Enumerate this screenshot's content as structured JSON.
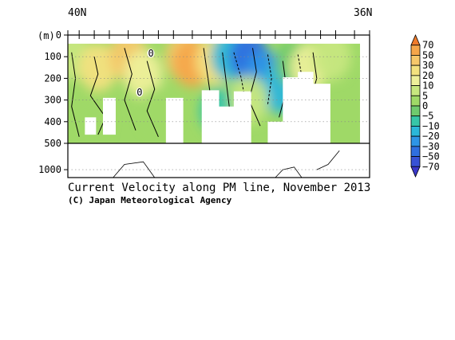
{
  "chart_data": {
    "type": "heatmap",
    "title": "Current Velocity along PM line, November 2013",
    "credit": "(C) Japan Meteorological Agency",
    "x_axis": {
      "left_label": "40N",
      "right_label": "36N",
      "range": [
        40,
        36
      ],
      "station_ticks": [
        40.0,
        39.85,
        39.65,
        39.45,
        39.2,
        39.0,
        38.8,
        38.6,
        38.35,
        38.1,
        37.9,
        37.7,
        37.45,
        37.25,
        37.05,
        36.85,
        36.65,
        36.45,
        36.2,
        36.0
      ]
    },
    "y_axis": {
      "unit_label": "(m)",
      "upper_ticks": [
        0,
        100,
        200,
        300,
        400,
        500
      ],
      "lower_ticks": [
        1000
      ],
      "upper_range": [
        0,
        500
      ],
      "lower_range": [
        500,
        1150
      ]
    },
    "colorbar": {
      "levels": [
        "70",
        "50",
        "30",
        "20",
        "10",
        "5",
        "0",
        "−5",
        "−10",
        "−20",
        "−30",
        "−50",
        "−70"
      ],
      "colors": [
        "#f07b2b",
        "#f5a64a",
        "#f6c86a",
        "#f3e27f",
        "#eef09a",
        "#c7e77f",
        "#9fd967",
        "#6fca6e",
        "#37c6a8",
        "#2bb7d9",
        "#2e95e6",
        "#2f6fe0",
        "#3752d6",
        "#3a38c9"
      ]
    },
    "contour_labels": [
      "0",
      "0"
    ],
    "profiles": [
      {
        "lat": 39.75,
        "bottom": 500
      },
      {
        "lat": 39.55,
        "bottom": 500
      },
      {
        "lat": 39.3,
        "bottom": 560
      },
      {
        "lat": 39.0,
        "bottom": 560
      },
      {
        "lat": 38.8,
        "bottom": 540
      },
      {
        "lat": 38.6,
        "bottom": 290
      },
      {
        "lat": 38.35,
        "bottom": 545
      },
      {
        "lat": 38.1,
        "bottom": 255
      },
      {
        "lat": 37.9,
        "bottom": 330
      },
      {
        "lat": 37.7,
        "bottom": 260
      },
      {
        "lat": 37.45,
        "bottom": 540
      },
      {
        "lat": 37.25,
        "bottom": 400
      },
      {
        "lat": 37.05,
        "bottom": 195
      },
      {
        "lat": 36.85,
        "bottom": 170
      },
      {
        "lat": 36.65,
        "bottom": 225
      },
      {
        "lat": 36.4,
        "bottom": 650
      }
    ],
    "value_field": [
      {
        "lat": 39.95,
        "depth": 100,
        "value": 5
      },
      {
        "lat": 39.6,
        "depth": 150,
        "value": 20
      },
      {
        "lat": 39.2,
        "depth": 100,
        "value": 30
      },
      {
        "lat": 39.0,
        "depth": 180,
        "value": 15
      },
      {
        "lat": 38.8,
        "depth": 350,
        "value": 3
      },
      {
        "lat": 38.45,
        "depth": 100,
        "value": 40
      },
      {
        "lat": 38.35,
        "depth": 130,
        "value": 55
      },
      {
        "lat": 38.05,
        "depth": 120,
        "value": 20
      },
      {
        "lat": 37.85,
        "depth": 100,
        "value": -15
      },
      {
        "lat": 37.6,
        "depth": 100,
        "value": -40
      },
      {
        "lat": 37.4,
        "depth": 180,
        "value": -30
      },
      {
        "lat": 37.2,
        "depth": 250,
        "value": -12
      },
      {
        "lat": 37.0,
        "depth": 130,
        "value": -5
      },
      {
        "lat": 36.8,
        "depth": 150,
        "value": 10
      },
      {
        "lat": 36.5,
        "depth": 100,
        "value": 5
      },
      {
        "lat": 39.7,
        "depth": 400,
        "value": 2
      },
      {
        "lat": 38.0,
        "depth": 350,
        "value": -8
      },
      {
        "lat": 37.6,
        "depth": 300,
        "value": 5
      }
    ]
  }
}
